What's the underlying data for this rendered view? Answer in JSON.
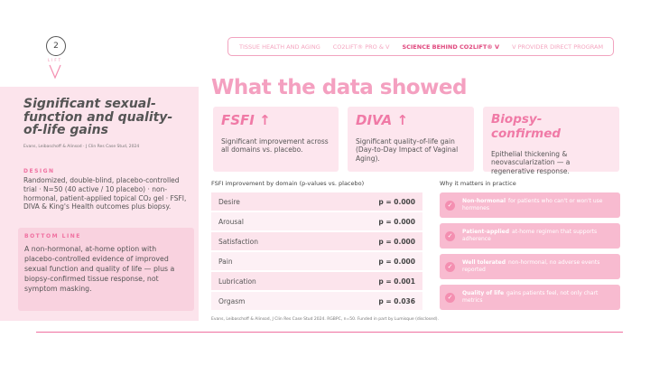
{
  "logo": {
    "mark": "2",
    "word": "LIFT"
  },
  "nav": [
    "TISSUE HEALTH AND AGING",
    "CO2LIFT® PRO & V",
    "SCIENCE BEHIND CO2LIFT® V",
    "V PROVIDER DIRECT PROGRAM"
  ],
  "left_panel": {
    "title": "Significant sexual-function and quality-of-life gains",
    "citation": "Evans, Leibaschoff & Alinsod · J Clin Res Case Stud, 2024",
    "design_label": "DESIGN",
    "design_text": "Randomized, double-blind, placebo-controlled trial · N=50 (40 active / 10 placebo) · non-hormonal, patient-applied topical CO₂ gel · FSFI, DIVA & King's Health outcomes plus biopsy.",
    "bottom_line_label": "BOTTOM LINE",
    "bottom_line_text": "A non-hormonal, at-home option with placebo-controlled evidence of improved sexual function and quality of life — plus a biopsy-confirmed tissue response, not symptom masking."
  },
  "heading": "What the data showed",
  "cards": [
    {
      "title": "FSFI ↑",
      "text": "Significant improvement across all domains vs. placebo."
    },
    {
      "title": "DIVA ↑",
      "text": "Significant quality-of-life gain (Day-to-Day Impact of Vaginal Aging)."
    },
    {
      "title": "Biopsy-confirmed",
      "text": "Epithelial thickening & neovascularization — a regenerative response."
    }
  ],
  "table": {
    "title": "FSFI improvement by domain (p-values vs. placebo)",
    "rows": [
      [
        "Desire",
        "p = 0.000"
      ],
      [
        "Arousal",
        "p = 0.000"
      ],
      [
        "Satisfaction",
        "p = 0.000"
      ],
      [
        "Pain",
        "p = 0.000"
      ],
      [
        "Lubrication",
        "p = 0.001"
      ],
      [
        "Orgasm",
        "p = 0.036"
      ]
    ]
  },
  "practice": {
    "title": "Why it matters in practice",
    "items": [
      {
        "bold": "Non-hormonal",
        "text": "for patients who can't or won't use hormones"
      },
      {
        "bold": "Patient-applied",
        "text": "at-home regimen that supports adherence"
      },
      {
        "bold": "Well tolerated",
        "text": "non-hormonal, no adverse events reported"
      },
      {
        "bold": "Quality of life",
        "text": "gains patients feel, not only chart metrics"
      }
    ]
  },
  "footer": "Evans, Leibaschoff & Alinsod, J Clin Res Case Stud 2024. RGBPC, n=50. Funded in part by Lumisque (disclosed)."
}
